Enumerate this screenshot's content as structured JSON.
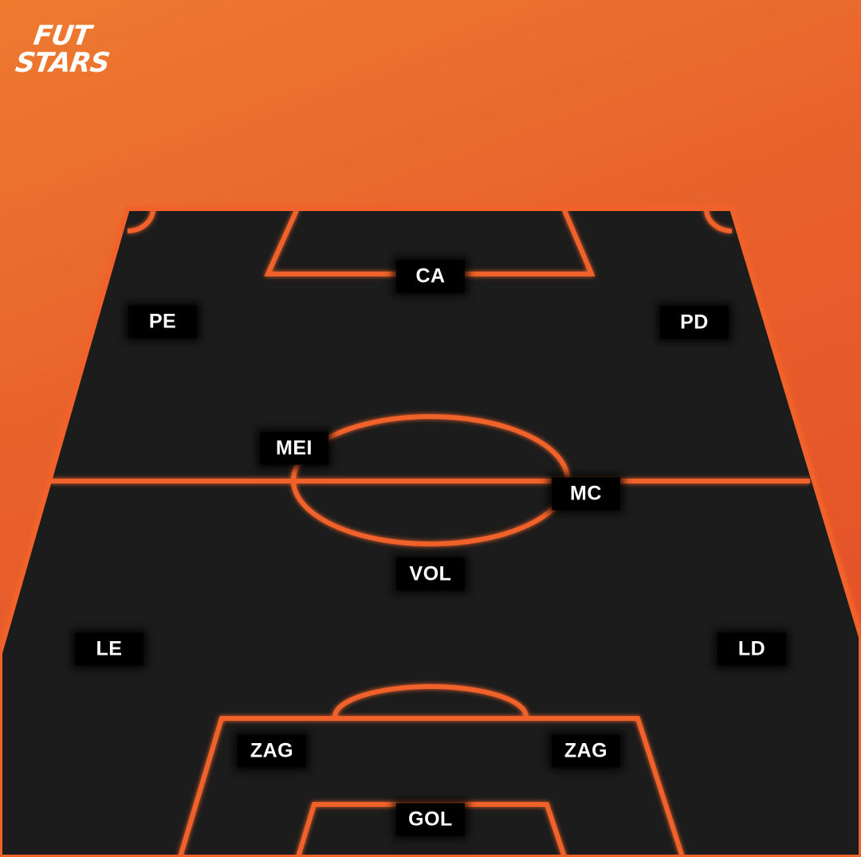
{
  "brand": {
    "line1": "FUT",
    "line2": "STARS"
  },
  "colors": {
    "pitch": "#1f1f1f",
    "lines": "#f0622a",
    "background": "#e8612c",
    "label_bg": "#000000",
    "label_text": "#ffffff"
  },
  "positions": {
    "ca": "CA",
    "pe": "PE",
    "pd": "PD",
    "mei": "MEI",
    "mc": "MC",
    "vol": "VOL",
    "le": "LE",
    "ld": "LD",
    "zag_left": "ZAG",
    "zag_right": "ZAG",
    "gol": "GOL"
  }
}
